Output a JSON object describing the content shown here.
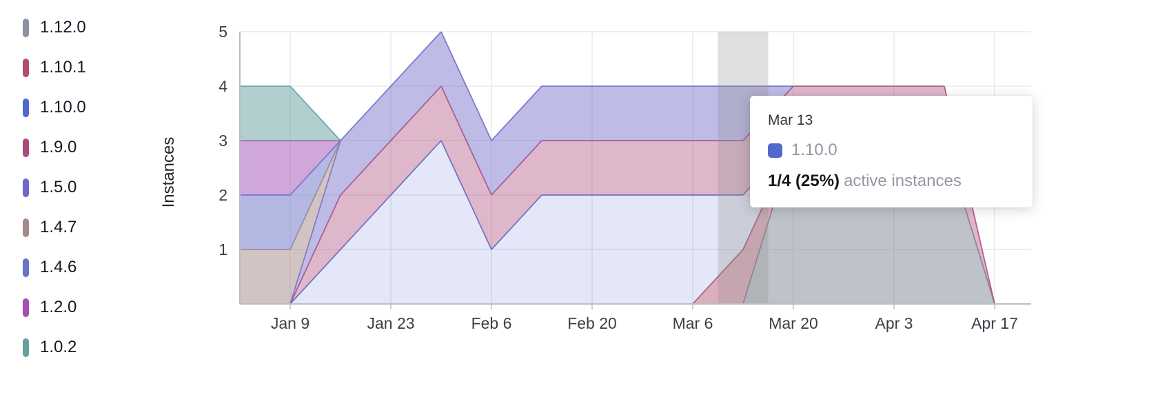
{
  "legend": {
    "items": [
      {
        "label": "1.12.0",
        "color": "#8a93a2"
      },
      {
        "label": "1.10.1",
        "color": "#b04f6b"
      },
      {
        "label": "1.10.0",
        "color": "#5168cc"
      },
      {
        "label": "1.9.0",
        "color": "#ad4a7d"
      },
      {
        "label": "1.5.0",
        "color": "#6f68c9"
      },
      {
        "label": "1.4.7",
        "color": "#a58a87"
      },
      {
        "label": "1.4.6",
        "color": "#6a74c9"
      },
      {
        "label": "1.2.0",
        "color": "#a24fb8"
      },
      {
        "label": "1.0.2",
        "color": "#64a0a0"
      }
    ]
  },
  "chart_data": {
    "type": "area",
    "stacked": true,
    "title": "",
    "xlabel": "",
    "ylabel": "Instances",
    "ylim": [
      0,
      5
    ],
    "y_ticks": [
      1,
      2,
      3,
      4,
      5
    ],
    "grid": true,
    "legend_position": "left",
    "x": [
      "Jan 2",
      "Jan 9",
      "Jan 16",
      "Jan 23",
      "Jan 30",
      "Feb 6",
      "Feb 13",
      "Feb 20",
      "Feb 27",
      "Mar 6",
      "Mar 13",
      "Mar 20",
      "Mar 27",
      "Apr 3",
      "Apr 10",
      "Apr 17"
    ],
    "x_tick_labels": [
      "Jan 9",
      "Jan 23",
      "Feb 6",
      "Feb 20",
      "Mar 6",
      "Mar 20",
      "Apr 3",
      "Apr 17"
    ],
    "series": [
      {
        "name": "1.12.0",
        "color": "#7d8696",
        "fill_opacity": 0.5,
        "values": [
          0,
          0,
          0,
          0,
          0,
          0,
          0,
          0,
          0,
          0,
          0,
          3,
          3,
          3,
          3,
          0
        ]
      },
      {
        "name": "1.10.1",
        "color": "#b04f6b",
        "fill_opacity": 0.45,
        "values": [
          0,
          0,
          0,
          0,
          0,
          0,
          0,
          0,
          0,
          0,
          1,
          0,
          0,
          0,
          0,
          0
        ]
      },
      {
        "name": "1.10.0",
        "color": "#5168cc",
        "fill_opacity": 0.16,
        "values": [
          0,
          0,
          1,
          2,
          3,
          1,
          2,
          2,
          2,
          2,
          1,
          0,
          0,
          0,
          0,
          0
        ]
      },
      {
        "name": "1.9.0",
        "color": "#ad4a7d",
        "fill_opacity": 0.4,
        "values": [
          0,
          0,
          1,
          1,
          1,
          1,
          1,
          1,
          1,
          1,
          1,
          1,
          1,
          1,
          1,
          0
        ]
      },
      {
        "name": "1.5.0",
        "color": "#6f68c9",
        "fill_opacity": 0.45,
        "values": [
          0,
          0,
          1,
          1,
          1,
          1,
          1,
          1,
          1,
          1,
          1,
          0,
          0,
          0,
          0,
          0
        ]
      },
      {
        "name": "1.4.7",
        "color": "#a58a87",
        "fill_opacity": 0.5,
        "values": [
          1,
          1,
          0,
          0,
          0,
          0,
          0,
          0,
          0,
          0,
          0,
          0,
          0,
          0,
          0,
          0
        ]
      },
      {
        "name": "1.4.6",
        "color": "#6a74c9",
        "fill_opacity": 0.5,
        "values": [
          1,
          1,
          0,
          0,
          0,
          0,
          0,
          0,
          0,
          0,
          0,
          0,
          0,
          0,
          0,
          0
        ]
      },
      {
        "name": "1.2.0",
        "color": "#a24fb8",
        "fill_opacity": 0.5,
        "values": [
          1,
          1,
          0,
          0,
          0,
          0,
          0,
          0,
          0,
          0,
          0,
          0,
          0,
          0,
          0,
          0
        ]
      },
      {
        "name": "1.0.2",
        "color": "#64a0a0",
        "fill_opacity": 0.5,
        "values": [
          1,
          1,
          0,
          0,
          0,
          0,
          0,
          0,
          0,
          0,
          0,
          0,
          0,
          0,
          0,
          0
        ]
      }
    ],
    "highlight_column": "Mar 13"
  },
  "tooltip": {
    "date": "Mar 13",
    "series": "1.10.0",
    "swatch_color": "#5168cc",
    "value": "1/4 (25%)",
    "suffix": "active instances"
  }
}
